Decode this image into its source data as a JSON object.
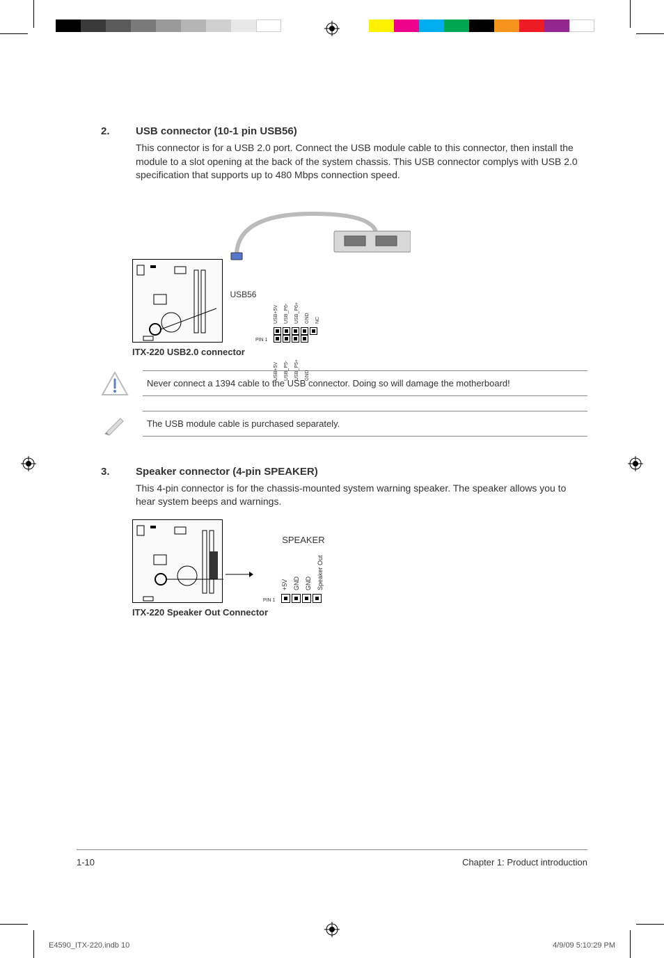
{
  "colorbar_left": [
    "#000000",
    "#3a3a3a",
    "#5a5a5a",
    "#7a7a7a",
    "#9a9a9a",
    "#b5b5b5",
    "#cfcfcf",
    "#e8e8e8",
    "#ffffff"
  ],
  "colorbar_right": [
    "#fff200",
    "#ec008c",
    "#00aeef",
    "#00a651",
    "#000000",
    "#f7941d",
    "#ed1c24",
    "#92278f",
    "#ffffff"
  ],
  "sections": {
    "usb": {
      "num": "2.",
      "title": "USB connector (10-1 pin USB56)",
      "desc": "This connector is for a USB 2.0 port. Connect the USB module cable to this connector, then install the module to a slot opening at the back of the system chassis. This USB connector complys with USB 2.0 specification that supports up to 480 Mbps connection speed.",
      "conn_label": "USB56",
      "pin1": "PIN 1",
      "pins_top": [
        "USB+5V",
        "USB_P6-",
        "USB_P6+",
        "GND",
        "NC"
      ],
      "pins_bot": [
        "USB+5V",
        "USB_P5-",
        "USB_P5+",
        "GND"
      ],
      "caption": "ITX-220 USB2.0 connector"
    },
    "speaker": {
      "num": "3.",
      "title": "Speaker connector (4-pin SPEAKER)",
      "desc": "This 4-pin connector is for the chassis-mounted system warning speaker. The speaker allows you to hear system beeps and warnings.",
      "header": "SPEAKER",
      "pin1": "PIN 1",
      "pins": [
        "+5V",
        "GND",
        "GND",
        "Speaker Out"
      ],
      "caption": "ITX-220 Speaker Out Connector"
    }
  },
  "notes": {
    "warning": "Never connect a 1394 cable to the USB connector. Doing so will damage the motherboard!",
    "info": "The USB module cable is purchased separately."
  },
  "footer": {
    "page_num": "1-10",
    "chapter": "Chapter 1: Product introduction"
  },
  "print": {
    "file": "E4590_ITX-220.indb   10",
    "stamp": "4/9/09   5:10:29 PM"
  }
}
